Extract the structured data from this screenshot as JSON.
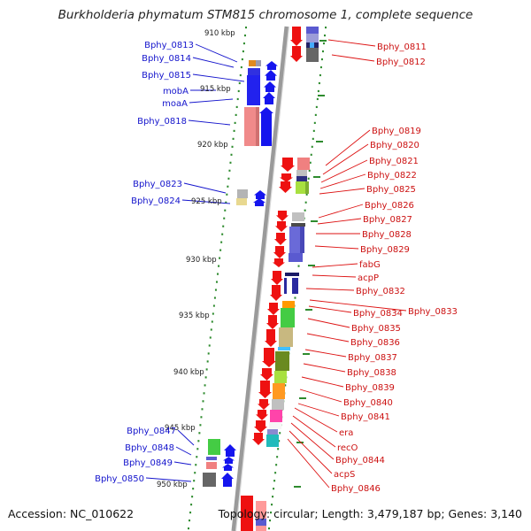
{
  "title": "Burkholderia phymatum STM815 chromosome 1, complete sequence",
  "footer": {
    "accession": "Accession: NC_010622",
    "stats": "Topology: circular; Length: 3,479,187 bp; Genes: 3,140"
  },
  "colors": {
    "backbone": "#8a8a8a",
    "tick": "#2e8b2e",
    "left_label": "#1414cc",
    "right_label": "#cc1111",
    "forward_strand": "#1515ee",
    "reverse_strand": "#ee1111"
  },
  "scale": {
    "unit": "kbp",
    "labels": [
      "910 kbp",
      "915 kbp",
      "920 kbp",
      "925 kbp",
      "930 kbp",
      "935 kbp",
      "940 kbp",
      "945 kbp",
      "950 kbp"
    ]
  },
  "genes_left": [
    "Bphy_0813",
    "Bphy_0814",
    "Bphy_0815",
    "mobA",
    "moaA",
    "Bphy_0818",
    "Bphy_0823",
    "Bphy_0824",
    "Bphy_0847",
    "Bphy_0848",
    "Bphy_0849",
    "Bphy_0850"
  ],
  "genes_right": [
    "Bphy_0811",
    "Bphy_0812",
    "Bphy_0819",
    "Bphy_0820",
    "Bphy_0821",
    "Bphy_0822",
    "Bphy_0825",
    "Bphy_0826",
    "Bphy_0827",
    "Bphy_0828",
    "Bphy_0829",
    "fabG",
    "acpP",
    "Bphy_0832",
    "Bphy_0833",
    "Bphy_0834",
    "Bphy_0835",
    "Bphy_0836",
    "Bphy_0837",
    "Bphy_0838",
    "Bphy_0839",
    "Bphy_0840",
    "Bphy_0841",
    "era",
    "recO",
    "Bphy_0844",
    "acpS",
    "Bphy_0846"
  ]
}
